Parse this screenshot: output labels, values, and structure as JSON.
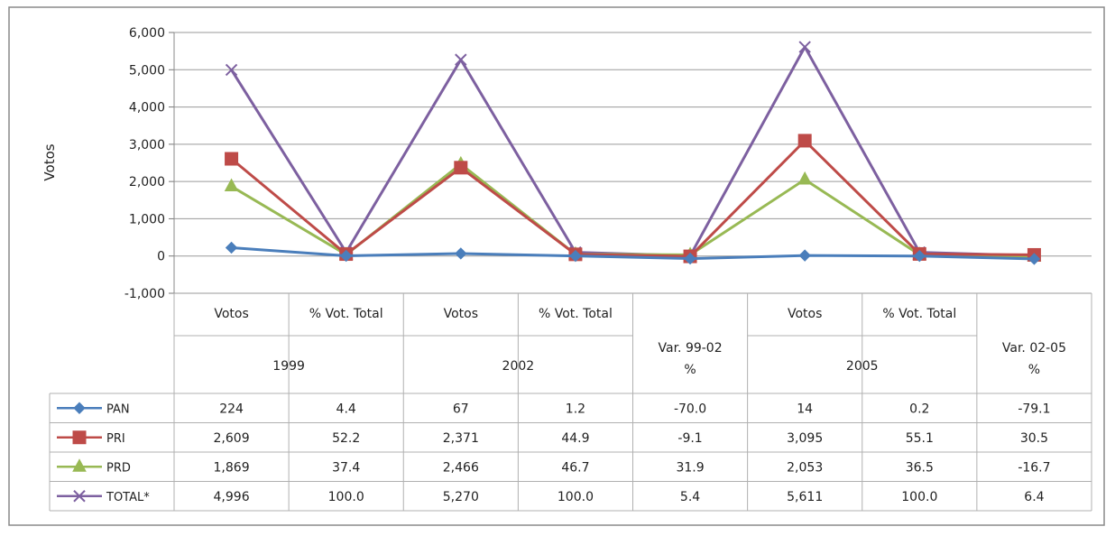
{
  "chart_data": {
    "type": "line",
    "ylabel": "Votos",
    "ylim": [
      -1000,
      6000
    ],
    "y_ticks": [
      "6,000",
      "5,000",
      "4,000",
      "3,000",
      "2,000",
      "1,000",
      "0",
      "-1,000"
    ],
    "y_tick_values": [
      6000,
      5000,
      4000,
      3000,
      2000,
      1000,
      0,
      -1000
    ],
    "grid": true,
    "categories": [
      {
        "sub": "Votos",
        "group": "1999"
      },
      {
        "sub": "% Vot. Total",
        "group": "1999"
      },
      {
        "sub": "Votos",
        "group": "2002"
      },
      {
        "sub": "% Vot. Total",
        "group": "2002"
      },
      {
        "sub": "",
        "group": "Var. 99-02 %"
      },
      {
        "sub": "Votos",
        "group": "2005"
      },
      {
        "sub": "% Vot. Total",
        "group": "2005"
      },
      {
        "sub": "",
        "group": "Var. 02-05 %"
      }
    ],
    "groups": [
      {
        "label": "1999",
        "span": 2,
        "has_sub": true
      },
      {
        "label": "2002",
        "span": 2,
        "has_sub": true
      },
      {
        "label": "Var. 99-02 %",
        "span": 1,
        "has_sub": false
      },
      {
        "label": "2005",
        "span": 2,
        "has_sub": true
      },
      {
        "label": "Var. 02-05 %",
        "span": 1,
        "has_sub": false
      }
    ],
    "series": [
      {
        "name": "PAN",
        "color": "#4a7ebb",
        "marker": "diamond",
        "values": [
          224,
          4.4,
          67,
          1.2,
          -70.0,
          14,
          0.2,
          -79.1
        ],
        "labels": [
          "224",
          "4.4",
          "67",
          "1.2",
          "-70.0",
          "14",
          "0.2",
          "-79.1"
        ]
      },
      {
        "name": "PRI",
        "color": "#be4b48",
        "marker": "square",
        "values": [
          2609,
          52.2,
          2371,
          44.9,
          -9.1,
          3095,
          55.1,
          30.5
        ],
        "labels": [
          "2,609",
          "52.2",
          "2,371",
          "44.9",
          "-9.1",
          "3,095",
          "55.1",
          "30.5"
        ]
      },
      {
        "name": "PRD",
        "color": "#98b954",
        "marker": "triangle",
        "values": [
          1869,
          37.4,
          2466,
          46.7,
          31.9,
          2053,
          36.5,
          -16.7
        ],
        "labels": [
          "1,869",
          "37.4",
          "2,466",
          "46.7",
          "31.9",
          "2,053",
          "36.5",
          "-16.7"
        ]
      },
      {
        "name": "TOTAL*",
        "color": "#7d60a0",
        "marker": "x",
        "values": [
          4996,
          100.0,
          5270,
          100.0,
          5.4,
          5611,
          100.0,
          6.4
        ],
        "labels": [
          "4,996",
          "100.0",
          "5,270",
          "100.0",
          "5.4",
          "5,611",
          "100.0",
          "6.4"
        ]
      }
    ]
  }
}
